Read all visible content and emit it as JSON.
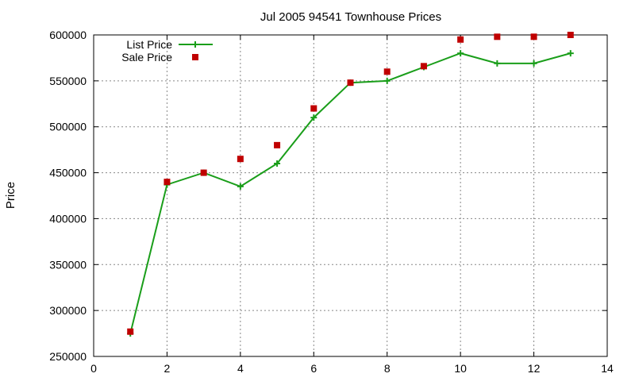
{
  "chart_data": {
    "type": "line",
    "title": "Jul 2005 94541 Townhouse Prices",
    "xlabel": "",
    "ylabel": "Price",
    "xlim": [
      0,
      14
    ],
    "ylim": [
      250000,
      600000
    ],
    "x_ticks": [
      0,
      2,
      4,
      6,
      8,
      10,
      12,
      14
    ],
    "y_ticks": [
      250000,
      300000,
      350000,
      400000,
      450000,
      500000,
      550000,
      600000
    ],
    "grid": true,
    "legend_position": "top-left",
    "series": [
      {
        "name": "List Price",
        "style": "line-with-plus-markers",
        "color": "#1a9e1a",
        "points": [
          {
            "x": 1,
            "y": 275000
          },
          {
            "x": 2,
            "y": 437000
          },
          {
            "x": 3,
            "y": 450000
          },
          {
            "x": 4,
            "y": 435000
          },
          {
            "x": 5,
            "y": 460000
          },
          {
            "x": 6,
            "y": 510000
          },
          {
            "x": 7,
            "y": 548000
          },
          {
            "x": 8,
            "y": 550000
          },
          {
            "x": 9,
            "y": 565000
          },
          {
            "x": 10,
            "y": 580000
          },
          {
            "x": 11,
            "y": 569000
          },
          {
            "x": 12,
            "y": 569000
          },
          {
            "x": 13,
            "y": 580000
          }
        ]
      },
      {
        "name": "Sale Price",
        "style": "square-markers",
        "color": "#c00000",
        "points": [
          {
            "x": 1,
            "y": 277000
          },
          {
            "x": 2,
            "y": 440000
          },
          {
            "x": 3,
            "y": 450000
          },
          {
            "x": 4,
            "y": 465000
          },
          {
            "x": 5,
            "y": 480000
          },
          {
            "x": 6,
            "y": 520000
          },
          {
            "x": 7,
            "y": 548000
          },
          {
            "x": 8,
            "y": 560000
          },
          {
            "x": 9,
            "y": 566000
          },
          {
            "x": 10,
            "y": 595000
          },
          {
            "x": 11,
            "y": 598000
          },
          {
            "x": 12,
            "y": 598000
          },
          {
            "x": 13,
            "y": 600000
          }
        ]
      }
    ]
  }
}
